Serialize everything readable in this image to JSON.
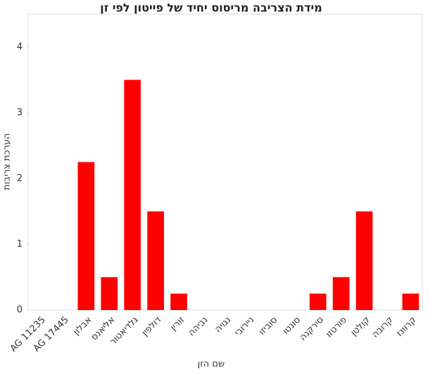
{
  "chart_data": {
    "type": "bar",
    "title": "מידת הצריבה מריסוס יחיד של פייטון לפי זן",
    "x_label": "שם הזן",
    "y_label": "הערכת צריבות",
    "categories": [
      "AG 11235",
      "AG 17445",
      "אבלון",
      "אליאנס",
      "גלדיאטור",
      "דולפין",
      "זורין",
      "נביהה",
      "נגויה",
      "ניירובי",
      "סוביזו",
      "סונטו",
      "סירקנה",
      "פורטזו",
      "קולטן",
      "קרובה",
      "קרוונז"
    ],
    "values": [
      0,
      0,
      2.25,
      0.5,
      3.5,
      1.5,
      0.25,
      0,
      0,
      0,
      0,
      0,
      0.25,
      0.5,
      1.5,
      0,
      0.25
    ],
    "color": "#ff0000",
    "ylim": [
      0,
      4.5
    ],
    "yticks": [
      0,
      1,
      2,
      3,
      4
    ],
    "grid": false
  }
}
